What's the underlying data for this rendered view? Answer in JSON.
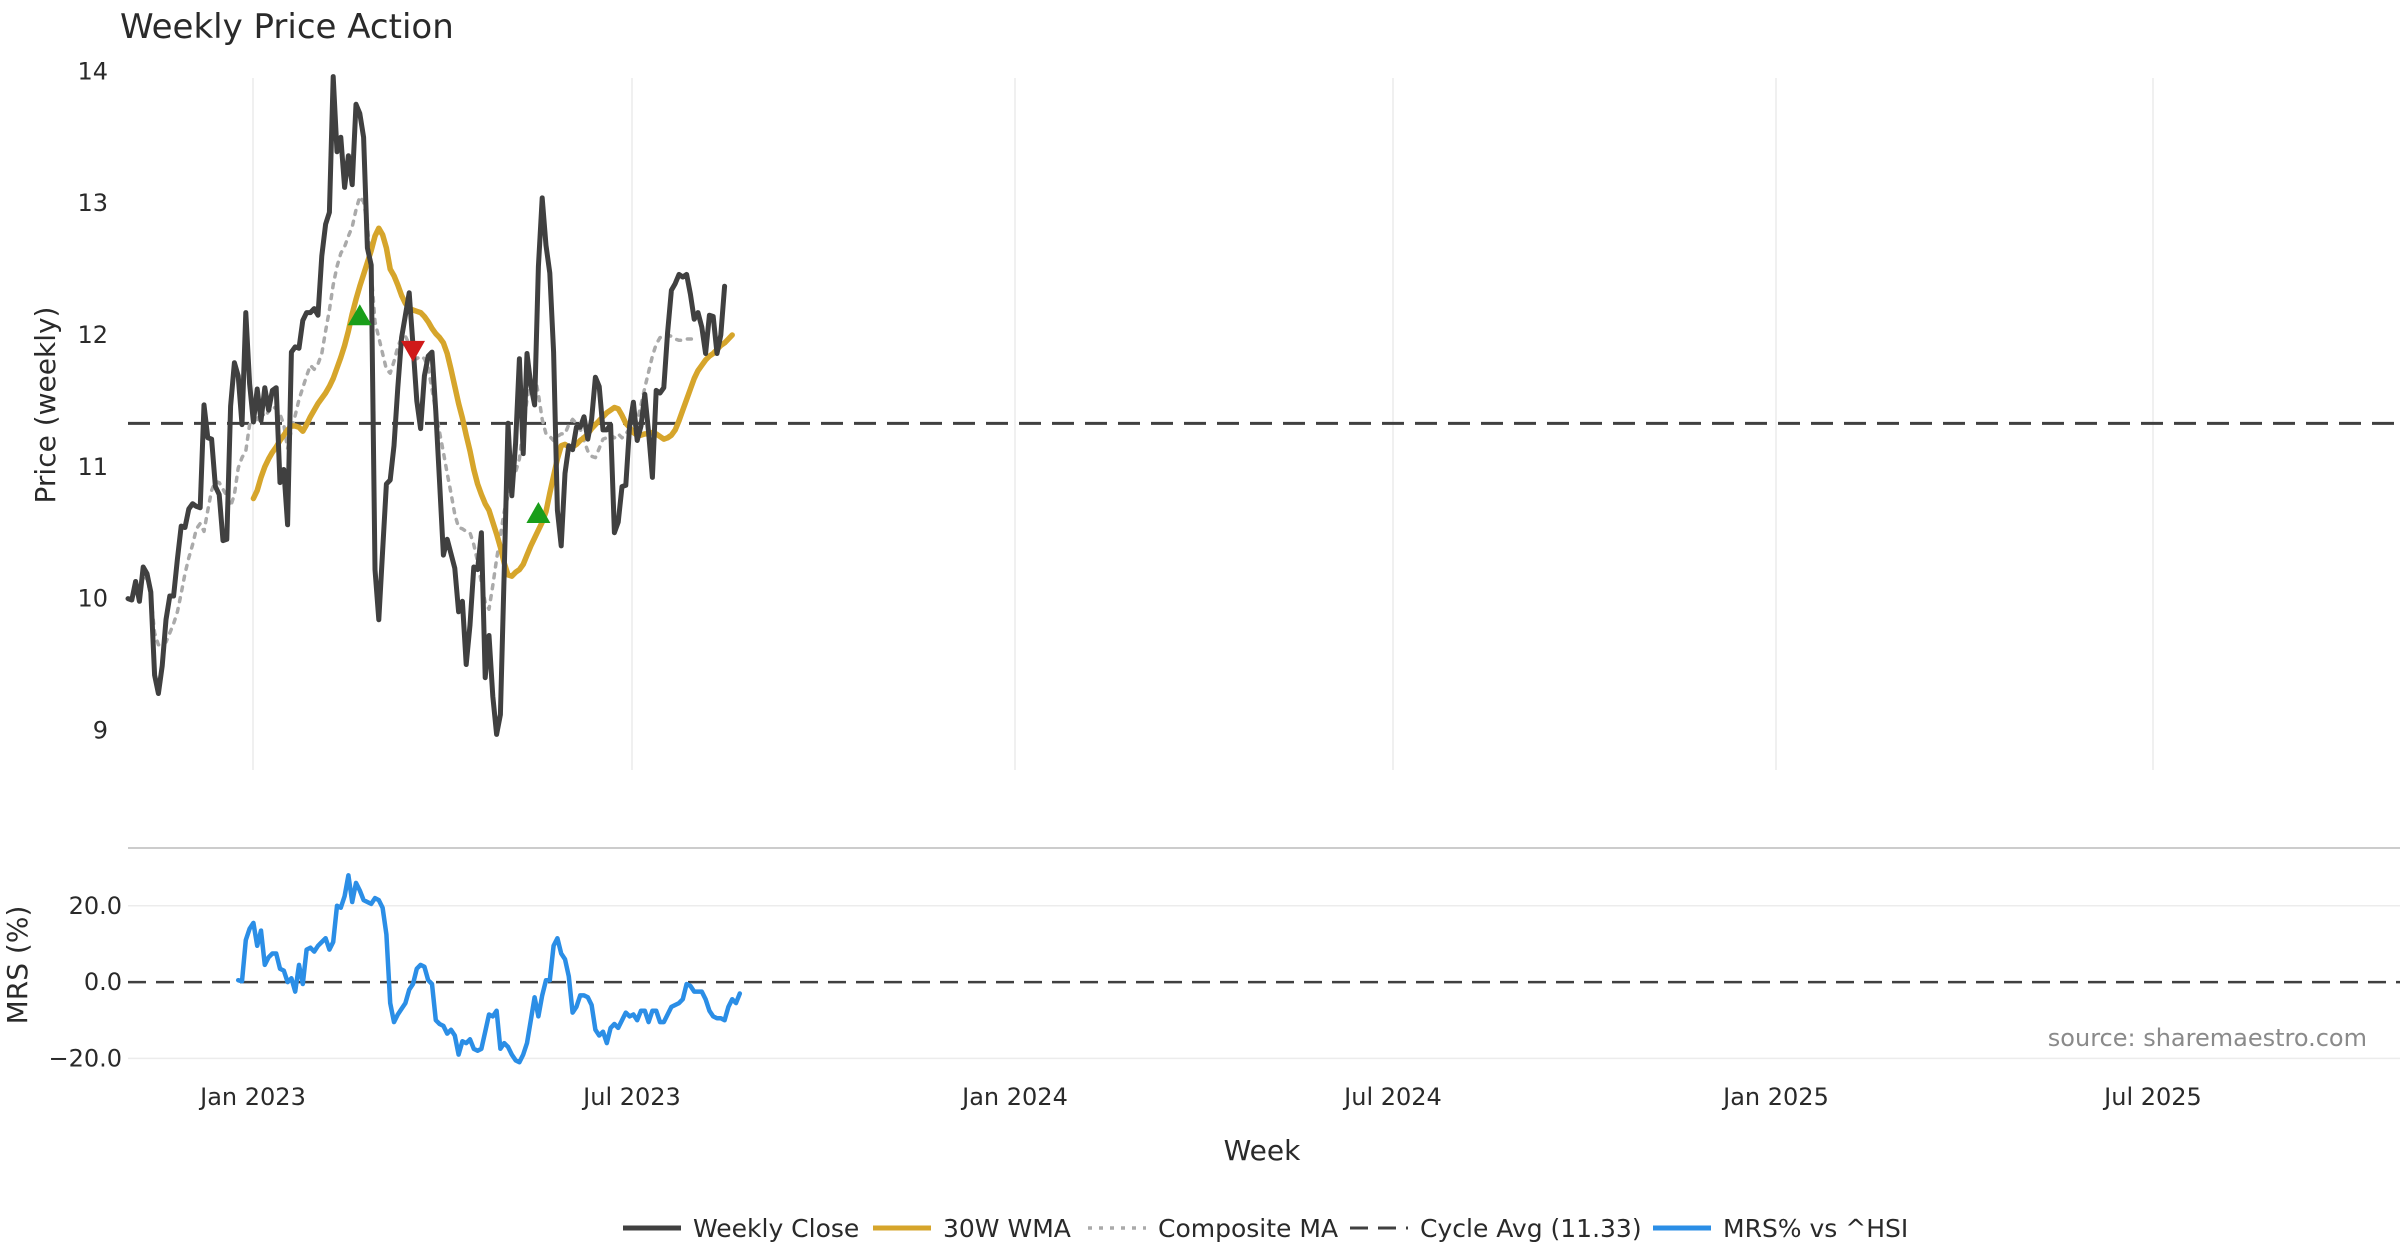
{
  "chart_data": {
    "type": "line",
    "title": "Weekly Price Action",
    "source_note": "source: sharemaestro.com",
    "x_ticks": [
      "Jan 2023",
      "Jul 2023",
      "Jan 2024",
      "Jul 2024",
      "Jan 2025",
      "Jul 2025"
    ],
    "xlabel": "Week",
    "price_panel": {
      "ylabel": "Price (weekly)",
      "ylim": [
        8.7,
        14.2
      ],
      "yticks": [
        9,
        10,
        11,
        12,
        13,
        14
      ],
      "cycle_avg": 11.33,
      "signals": [
        {
          "type": "buy",
          "week": 61,
          "value": 12.15,
          "color": "#1a9e1a"
        },
        {
          "type": "sell",
          "week": 75,
          "value": 11.88,
          "color": "#d01a1a"
        },
        {
          "type": "buy",
          "week": 108,
          "value": 10.65,
          "color": "#1a9e1a"
        }
      ]
    },
    "mrs_panel": {
      "ylabel": "MRS (%)",
      "ylim": [
        -22,
        32
      ],
      "yticks": [
        20,
        0,
        -20
      ],
      "ytick_labels": [
        "20.0",
        "0.0",
        "−20.0"
      ]
    },
    "series": [
      {
        "name": "Weekly Close",
        "color": "#404040",
        "style": "solid",
        "start_week": 0,
        "values": [
          10.0,
          9.99,
          10.13,
          9.98,
          10.24,
          10.19,
          10.05,
          9.42,
          9.28,
          9.49,
          9.84,
          10.02,
          10.02,
          10.3,
          10.55,
          10.54,
          10.68,
          10.72,
          10.7,
          10.69,
          11.47,
          11.22,
          11.21,
          10.85,
          10.79,
          10.44,
          10.45,
          11.46,
          11.79,
          11.69,
          11.32,
          12.17,
          11.63,
          11.34,
          11.59,
          11.35,
          11.6,
          11.43,
          11.58,
          11.6,
          10.88,
          10.98,
          10.56,
          11.87,
          11.91,
          11.9,
          12.11,
          12.17,
          12.17,
          12.2,
          12.15,
          12.6,
          12.84,
          12.93,
          13.96,
          13.39,
          13.5,
          13.12,
          13.36,
          13.14,
          13.75,
          13.68,
          13.5,
          12.66,
          12.53,
          10.22,
          9.84,
          10.36,
          10.87,
          10.9,
          11.16,
          11.6,
          11.98,
          12.15,
          12.32,
          11.92,
          11.5,
          11.29,
          11.69,
          11.84,
          11.87,
          11.42,
          10.88,
          10.33,
          10.45,
          10.34,
          10.23,
          9.9,
          9.98,
          9.5,
          9.8,
          10.24,
          10.22,
          10.5,
          9.4,
          9.72,
          9.26,
          8.97,
          9.12,
          10.2,
          11.33,
          10.78,
          11.18,
          11.82,
          11.1,
          11.86,
          11.62,
          11.47,
          12.52,
          13.04,
          12.68,
          12.47,
          11.87,
          10.67,
          10.4,
          10.95,
          11.16,
          11.13,
          11.3,
          11.3,
          11.38,
          11.21,
          11.36,
          11.68,
          11.61,
          11.28,
          11.28,
          11.32,
          10.5,
          10.58,
          10.85,
          10.86,
          11.31,
          11.49,
          11.2,
          11.31,
          11.55,
          11.26,
          10.92,
          11.58,
          11.56,
          11.6,
          12.02,
          12.34,
          12.39,
          12.46,
          12.44,
          12.46,
          12.31,
          12.12,
          12.17,
          12.06,
          11.86,
          12.15,
          12.14,
          11.86,
          12.0,
          12.37
        ]
      },
      {
        "name": "30W WMA",
        "color": "#d6a52b",
        "style": "solid",
        "start_week": 33,
        "values": [
          10.76,
          10.82,
          10.92,
          11.0,
          11.06,
          11.11,
          11.15,
          11.2,
          11.24,
          11.28,
          11.31,
          11.31,
          11.3,
          11.27,
          11.32,
          11.38,
          11.43,
          11.48,
          11.52,
          11.56,
          11.61,
          11.67,
          11.75,
          11.83,
          11.92,
          12.03,
          12.16,
          12.27,
          12.37,
          12.46,
          12.55,
          12.64,
          12.75,
          12.81,
          12.76,
          12.66,
          12.5,
          12.45,
          12.38,
          12.3,
          12.24,
          12.2,
          12.19,
          12.18,
          12.17,
          12.14,
          12.1,
          12.05,
          12.01,
          11.98,
          11.94,
          11.86,
          11.74,
          11.61,
          11.48,
          11.37,
          11.24,
          11.12,
          10.98,
          10.87,
          10.79,
          10.72,
          10.67,
          10.58,
          10.49,
          10.39,
          10.27,
          10.18,
          10.17,
          10.2,
          10.22,
          10.26,
          10.33,
          10.4,
          10.46,
          10.52,
          10.58,
          10.66,
          10.8,
          10.93,
          11.06,
          11.16,
          11.17,
          11.15,
          11.15,
          11.17,
          11.2,
          11.22,
          11.25,
          11.29,
          11.32,
          11.35,
          11.38,
          11.41,
          11.43,
          11.45,
          11.44,
          11.39,
          11.33,
          11.3,
          11.26,
          11.24,
          11.24,
          11.25,
          11.25,
          11.26,
          11.25,
          11.23,
          11.21,
          11.22,
          11.24,
          11.28,
          11.35,
          11.43,
          11.51,
          11.59,
          11.67,
          11.73,
          11.77,
          11.81,
          11.84,
          11.86,
          11.89,
          11.92,
          11.94,
          11.97,
          12.0
        ]
      },
      {
        "name": "Composite MA",
        "color": "#aaaaaa",
        "style": "dotted",
        "start_week": 3,
        "values": [
          10.09,
          10.14,
          10.16,
          10.02,
          9.74,
          9.65,
          9.65,
          9.67,
          9.74,
          9.81,
          9.9,
          10.04,
          10.19,
          10.31,
          10.41,
          10.53,
          10.57,
          10.51,
          10.67,
          10.82,
          10.89,
          10.88,
          10.83,
          10.78,
          10.7,
          10.79,
          10.99,
          11.07,
          11.12,
          11.32,
          11.35,
          11.36,
          11.42,
          11.38,
          11.42,
          11.46,
          11.44,
          11.4,
          11.32,
          11.14,
          11.28,
          11.39,
          11.51,
          11.6,
          11.69,
          11.77,
          11.74,
          11.78,
          11.86,
          12.03,
          12.19,
          12.38,
          12.52,
          12.62,
          12.67,
          12.75,
          12.82,
          12.95,
          13.05,
          13.01,
          12.84,
          12.48,
          12.1,
          11.98,
          11.86,
          11.74,
          11.71,
          11.8,
          11.91,
          11.98,
          11.99,
          11.93,
          11.85,
          11.82,
          11.84,
          11.82,
          11.75,
          11.59,
          11.42,
          11.26,
          11.11,
          10.95,
          10.8,
          10.64,
          10.54,
          10.53,
          10.51,
          10.5,
          10.41,
          10.28,
          10.12,
          9.97,
          9.92,
          10.1,
          10.3,
          10.48,
          10.66,
          10.78,
          10.91,
          10.96,
          11.06,
          11.29,
          11.51,
          11.64,
          11.7,
          11.55,
          11.36,
          11.25,
          11.23,
          11.2,
          11.23,
          11.25,
          11.25,
          11.32,
          11.36,
          11.33,
          11.29,
          11.2,
          11.12,
          11.08,
          11.07,
          11.14,
          11.21,
          11.22,
          11.24,
          11.22,
          11.25,
          11.22,
          11.25,
          11.29,
          11.3,
          11.35,
          11.47,
          11.6,
          11.72,
          11.84,
          11.93,
          11.98,
          11.99,
          12.0,
          11.99,
          11.97,
          11.96,
          11.96,
          11.97,
          11.97,
          11.97,
          11.98
        ]
      },
      {
        "name": "Cycle Avg (11.33)",
        "color": "#404040",
        "style": "dashed"
      },
      {
        "name": "MRS% vs ^HSI",
        "color": "#2b8ee6",
        "style": "solid",
        "start_week": 29,
        "panel": "mrs",
        "values": [
          0.5,
          0.2,
          11.0,
          14.0,
          15.5,
          9.5,
          13.5,
          4.5,
          6.5,
          7.5,
          7.5,
          3.5,
          3.0,
          0.0,
          1.0,
          -2.5,
          4.5,
          -0.5,
          8.5,
          9.0,
          8.0,
          9.5,
          10.5,
          11.5,
          8.5,
          10.5,
          20.0,
          19.5,
          22.5,
          28.0,
          21.0,
          26.0,
          24.0,
          21.5,
          21.0,
          20.5,
          22.0,
          21.5,
          19.5,
          12.5,
          -5.5,
          -10.5,
          -8.5,
          -7.0,
          -5.5,
          -2.0,
          -0.5,
          3.5,
          4.5,
          4.0,
          0.5,
          -0.5,
          -10.0,
          -11.0,
          -11.5,
          -13.5,
          -12.5,
          -14.0,
          -19.0,
          -15.5,
          -16.0,
          -15.0,
          -17.5,
          -18.0,
          -17.5,
          -13.0,
          -8.5,
          -9.0,
          -7.5,
          -17.5,
          -16.0,
          -17.0,
          -19.0,
          -20.5,
          -21.0,
          -19.0,
          -16.0,
          -10.0,
          -4.0,
          -9.0,
          -3.5,
          0.5,
          0.5,
          9.5,
          11.5,
          7.5,
          6.0,
          1.5,
          -8.0,
          -6.5,
          -3.5,
          -3.5,
          -4.0,
          -6.0,
          -12.5,
          -14.0,
          -13.0,
          -16.0,
          -12.0,
          -11.0,
          -12.0,
          -10.0,
          -8.0,
          -9.0,
          -8.5,
          -10.0,
          -7.5,
          -7.5,
          -10.5,
          -7.5,
          -7.5,
          -10.5,
          -10.5,
          -8.5,
          -6.5,
          -6.0,
          -5.5,
          -4.5,
          -0.5,
          -1.0,
          -2.5,
          -2.5,
          -2.5,
          -4.5,
          -7.5,
          -9.0,
          -9.5,
          -9.5,
          -10.0,
          -6.5,
          -4.5,
          -5.5,
          -3.0
        ]
      }
    ]
  }
}
